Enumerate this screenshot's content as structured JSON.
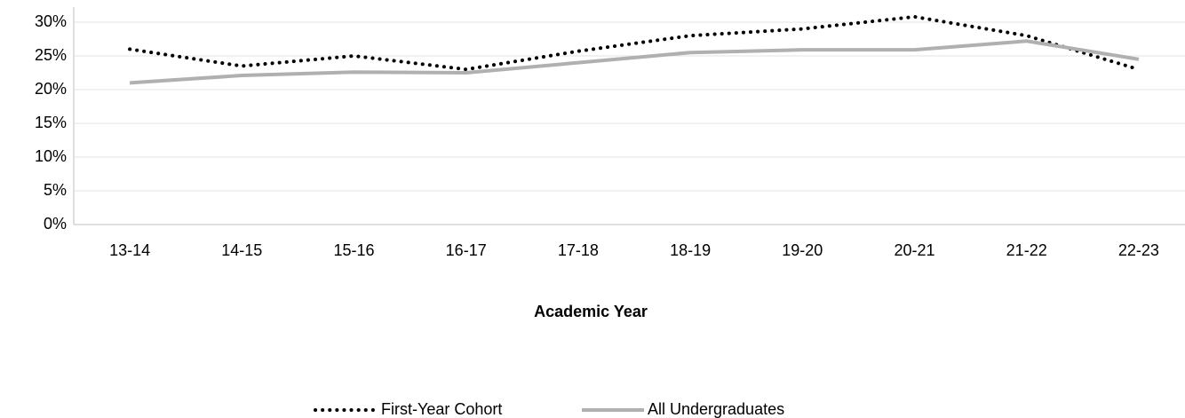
{
  "chart_data": {
    "type": "line",
    "x_label": "Academic Year",
    "categories": [
      "13-14",
      "14-15",
      "15-16",
      "16-17",
      "17-18",
      "18-19",
      "19-20",
      "20-21",
      "21-22",
      "22-23"
    ],
    "series": [
      {
        "name": "First-Year Cohort",
        "color": "#000000",
        "style": "dotted",
        "values": [
          26,
          23.5,
          25,
          23,
          25.7,
          28,
          29,
          30.8,
          28,
          23
        ]
      },
      {
        "name": "All Undergraduates",
        "color": "#b0b0b0",
        "style": "solid",
        "values": [
          21,
          22.1,
          22.6,
          22.5,
          24,
          25.5,
          25.9,
          25.9,
          27.2,
          24.5
        ]
      }
    ],
    "ylim": [
      0,
      30
    ],
    "yticks": [
      {
        "value": 0,
        "label": "0%"
      },
      {
        "value": 5,
        "label": "5%"
      },
      {
        "value": 10,
        "label": "10%"
      },
      {
        "value": 15,
        "label": "15%"
      },
      {
        "value": 20,
        "label": "20%"
      },
      {
        "value": 25,
        "label": "25%"
      },
      {
        "value": 30,
        "label": "30%"
      }
    ],
    "grid": true,
    "legend": "bottom"
  }
}
